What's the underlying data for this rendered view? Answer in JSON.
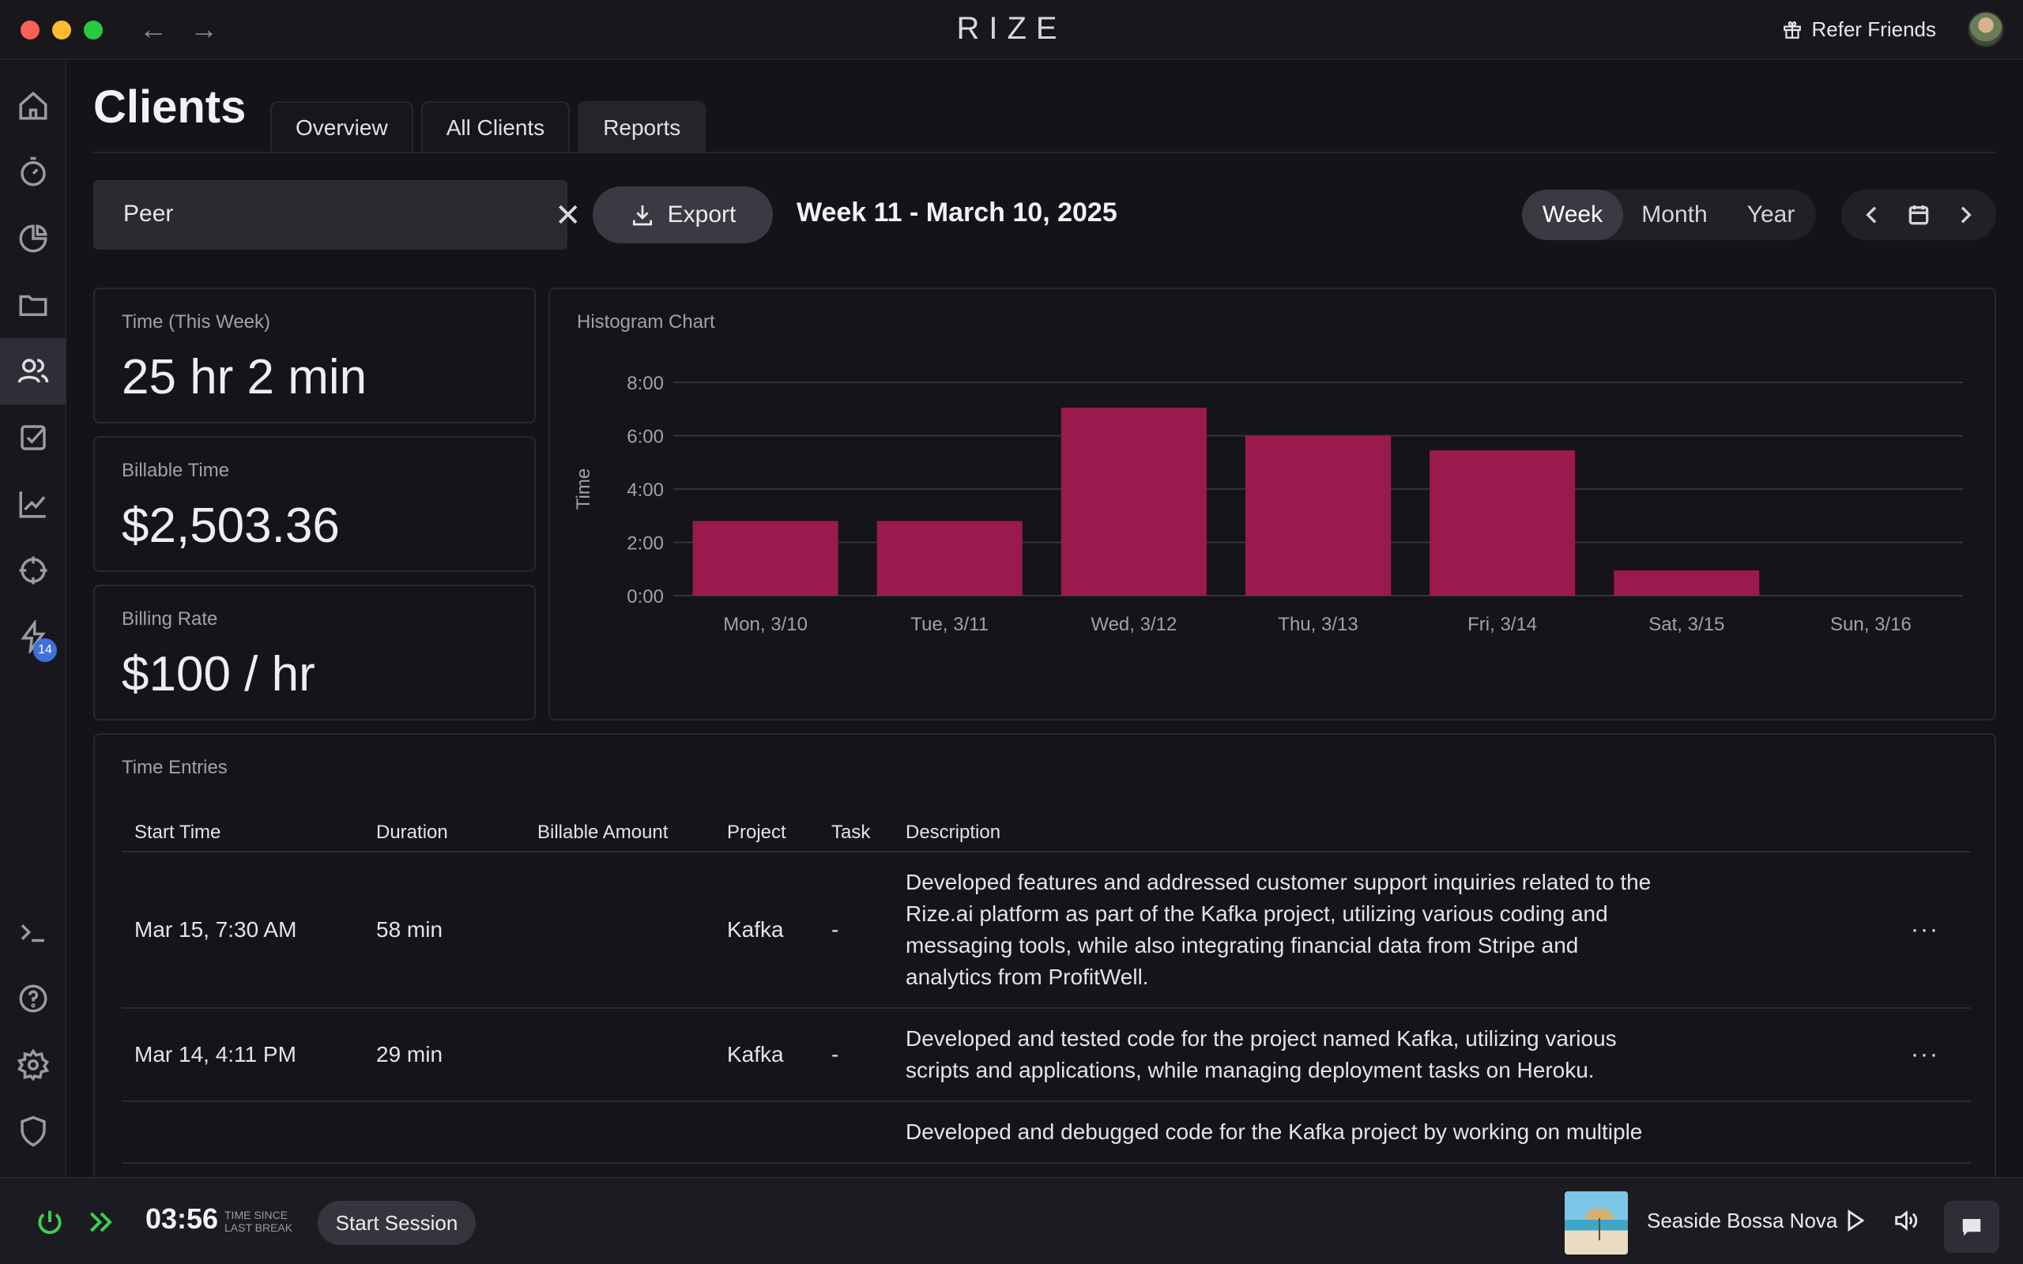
{
  "app": {
    "brand": "RIZE",
    "refer_label": "Refer Friends",
    "nav_back": "←",
    "nav_forward": "→"
  },
  "sidebar": {
    "items": [
      {
        "name": "home-icon"
      },
      {
        "name": "timer-icon"
      },
      {
        "name": "pie-chart-icon"
      },
      {
        "name": "folder-icon"
      },
      {
        "name": "users-icon",
        "active": true
      },
      {
        "name": "checkbox-icon"
      },
      {
        "name": "trend-chart-icon"
      },
      {
        "name": "crosshair-icon"
      },
      {
        "name": "bolt-icon",
        "badge": "14"
      },
      {
        "name": "terminal-icon"
      },
      {
        "name": "help-icon"
      },
      {
        "name": "gear-icon"
      },
      {
        "name": "shield-icon"
      }
    ],
    "badge": "14"
  },
  "page": {
    "title": "Clients",
    "tabs": [
      "Overview",
      "All Clients",
      "Reports"
    ],
    "active_tab": "Reports"
  },
  "filters": {
    "client_value": "Peer",
    "clear_symbol": "✕",
    "export_label": "Export",
    "week_label": "Week 11 - March 10, 2025",
    "periods": [
      "Week",
      "Month",
      "Year"
    ],
    "active_period": "Week"
  },
  "stats": {
    "time_label": "Time (This Week)",
    "time_value": "25 hr 2 min",
    "billable_label": "Billable Time",
    "billable_value": "$2,503.36",
    "rate_label": "Billing Rate",
    "rate_value": "$100 / hr"
  },
  "chart_data": {
    "type": "bar",
    "title": "Histogram Chart",
    "ylabel": "Time",
    "xlabel": "",
    "categories": [
      "Mon, 3/10",
      "Tue, 3/11",
      "Wed, 3/12",
      "Thu, 3/13",
      "Fri, 3/14",
      "Sat, 3/15",
      "Sun, 3/16"
    ],
    "values": [
      2.8,
      2.8,
      7.05,
      6.0,
      5.45,
      0.95,
      0
    ],
    "yticks": [
      "0:00",
      "2:00",
      "4:00",
      "6:00",
      "8:00"
    ],
    "ylim": [
      0,
      8
    ],
    "bar_color": "#9a1a4e",
    "grid": true
  },
  "entries": {
    "title": "Time Entries",
    "columns": [
      "Start Time",
      "Duration",
      "Billable Amount",
      "Project",
      "Task",
      "Description"
    ],
    "rows": [
      {
        "start": "Mar 15, 7:30 AM",
        "duration": "58 min",
        "billable": "",
        "project": "Kafka",
        "task": "-",
        "description": "Developed features and addressed customer support inquiries related to the Rize.ai platform as part of the Kafka project, utilizing various coding and messaging tools, while also integrating financial data from Stripe and analytics from ProfitWell.",
        "more": "···"
      },
      {
        "start": "Mar 14, 4:11 PM",
        "duration": "29 min",
        "billable": "",
        "project": "Kafka",
        "task": "-",
        "description": "Developed and tested code for the project named Kafka, utilizing various scripts and applications, while managing deployment tasks on Heroku.",
        "more": "···"
      },
      {
        "start": "",
        "duration": "",
        "billable": "",
        "project": "",
        "task": "",
        "description": "Developed and debugged code for the Kafka project by working on multiple",
        "more": ""
      }
    ]
  },
  "bottombar": {
    "timer": "03:56",
    "since_line1": "TIME SINCE",
    "since_line2": "LAST BREAK",
    "start_session": "Start Session",
    "track": "Seaside Bossa Nova"
  },
  "colors": {
    "accent_green": "#3ccf4e",
    "bar": "#9a1a4e",
    "badge": "#3f6fd8"
  }
}
